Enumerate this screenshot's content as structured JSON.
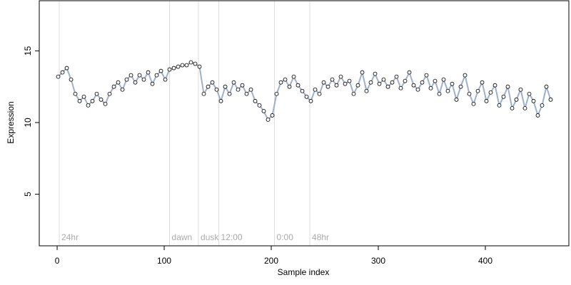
{
  "chart_data": {
    "type": "scatter",
    "xlabel": "Sample index",
    "ylabel": "Expression",
    "x": [
      1,
      5,
      9,
      13,
      17,
      21,
      25,
      29,
      33,
      37,
      41,
      45,
      49,
      53,
      57,
      61,
      65,
      69,
      73,
      77,
      81,
      85,
      89,
      93,
      97,
      101,
      105,
      109,
      113,
      117,
      121,
      125,
      129,
      133,
      137,
      141,
      145,
      149,
      153,
      157,
      161,
      165,
      169,
      173,
      177,
      181,
      185,
      189,
      193,
      197,
      201,
      205,
      209,
      213,
      217,
      221,
      225,
      229,
      233,
      237,
      241,
      245,
      249,
      253,
      257,
      261,
      265,
      269,
      273,
      277,
      281,
      285,
      289,
      293,
      297,
      301,
      305,
      309,
      313,
      317,
      321,
      325,
      329,
      333,
      337,
      341,
      345,
      349,
      353,
      357,
      361,
      365,
      369,
      373,
      377,
      381,
      385,
      389,
      393,
      397,
      401,
      405,
      409,
      413,
      417,
      421,
      425,
      429,
      433,
      437,
      441,
      445,
      449,
      453,
      457,
      461
    ],
    "values": [
      13.2,
      13.5,
      13.8,
      13.0,
      12.0,
      11.5,
      11.8,
      11.2,
      11.5,
      12.0,
      11.6,
      11.3,
      12.0,
      12.5,
      12.8,
      12.3,
      13.0,
      13.3,
      12.8,
      13.3,
      13.0,
      13.5,
      12.7,
      13.3,
      13.6,
      13.0,
      13.7,
      13.8,
      13.9,
      14.0,
      14.0,
      14.2,
      14.1,
      13.9,
      12.0,
      12.5,
      12.8,
      12.3,
      11.5,
      12.5,
      12.0,
      12.8,
      12.3,
      12.6,
      12.0,
      12.3,
      11.5,
      11.2,
      10.8,
      10.2,
      10.5,
      12.0,
      12.8,
      13.0,
      12.5,
      13.2,
      12.6,
      12.2,
      11.8,
      11.5,
      12.3,
      12.0,
      12.8,
      12.5,
      13.0,
      12.6,
      13.2,
      12.7,
      12.9,
      12.0,
      12.6,
      13.5,
      12.2,
      12.8,
      13.4,
      12.7,
      13.0,
      12.5,
      12.8,
      13.2,
      12.4,
      12.9,
      13.5,
      12.6,
      12.3,
      12.8,
      13.3,
      12.4,
      12.9,
      12.0,
      13.0,
      12.2,
      12.7,
      11.6,
      12.5,
      13.3,
      12.0,
      11.3,
      12.2,
      12.8,
      11.5,
      12.1,
      12.6,
      11.2,
      11.8,
      12.5,
      11.0,
      11.6,
      12.3,
      11.0,
      12.0,
      11.5,
      10.5,
      11.2,
      12.5,
      11.6
    ],
    "line_color": "#9db0cc",
    "point_fill": "#ffffff",
    "point_stroke": "#000000",
    "markers": [
      {
        "x": 2,
        "label": "24hr"
      },
      {
        "x": 105,
        "label": "dawn"
      },
      {
        "x": 132,
        "label": "dusk"
      },
      {
        "x": 151,
        "label": "12:00"
      },
      {
        "x": 203,
        "label": "0:00"
      },
      {
        "x": 236,
        "label": "48hr"
      }
    ],
    "xlim": [
      -16.7,
      478
    ],
    "ylim": [
      1.4,
      18.5
    ],
    "xticks": [
      0,
      100,
      200,
      300,
      400
    ],
    "yticks": [
      5,
      10,
      15
    ]
  }
}
